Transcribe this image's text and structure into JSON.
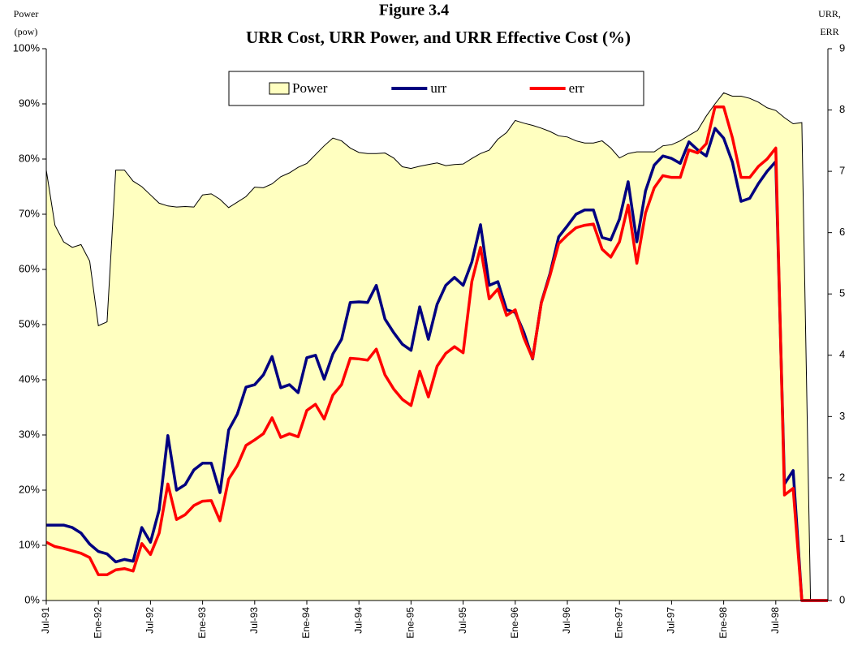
{
  "chart_data": {
    "type": "line",
    "title": "Figure 3.4",
    "subtitle": "URR Cost, URR Power, and URR Effective Cost (%)",
    "ylabel": [
      "Power",
      "(pow)"
    ],
    "y2label": [
      "URR,",
      "ERR"
    ],
    "legend": "top",
    "categories": [
      "Jul-91",
      null,
      null,
      null,
      null,
      null,
      "Ene-92",
      null,
      null,
      null,
      null,
      null,
      "Jul-92",
      null,
      null,
      null,
      null,
      null,
      "Ene-93",
      null,
      null,
      null,
      null,
      null,
      "Jul-93",
      null,
      null,
      null,
      null,
      null,
      "Ene-94",
      null,
      null,
      null,
      null,
      null,
      "Jul-94",
      null,
      null,
      null,
      null,
      null,
      "Ene-95",
      null,
      null,
      null,
      null,
      null,
      "Jul-95",
      null,
      null,
      null,
      null,
      null,
      "Ene-96",
      null,
      null,
      null,
      null,
      null,
      "Jul-96",
      null,
      null,
      null,
      null,
      null,
      "Ene-97",
      null,
      null,
      null,
      null,
      null,
      "Jul-97",
      null,
      null,
      null,
      null,
      null,
      "Ene-98",
      null,
      null,
      null,
      null,
      null,
      "Jul-98",
      null,
      null,
      null,
      null,
      null,
      null
    ],
    "series": [
      {
        "name": "Power",
        "type": "area",
        "color": "#ffffc0",
        "axis": "y",
        "values": [
          78,
          68,
          65,
          64,
          64.5,
          61.5,
          49.8,
          50.5,
          78,
          78,
          76,
          75,
          73.5,
          72,
          71.5,
          71.3,
          71.4,
          71.3,
          73.5,
          73.7,
          72.7,
          71.2,
          72.2,
          73.2,
          74.9,
          74.8,
          75.5,
          76.8,
          77.5,
          78.5,
          79.2,
          80.8,
          82.4,
          83.8,
          83.3,
          82,
          81.2,
          81,
          81,
          81.1,
          80.2,
          78.6,
          78.3,
          78.7,
          79,
          79.3,
          78.8,
          79,
          79.1,
          80.1,
          81,
          81.6,
          83.6,
          84.8,
          87,
          86.5,
          86.1,
          85.6,
          85,
          84.2,
          84,
          83.3,
          82.9,
          82.9,
          83.3,
          82,
          80.2,
          81,
          81.3,
          81.3,
          81.3,
          82.4,
          82.6,
          83.3,
          84.3,
          85.2,
          87.8,
          90,
          92,
          91.4,
          91.4,
          91,
          90.3,
          89.3,
          88.8,
          87.5,
          86.4,
          86.6,
          0,
          0,
          0
        ]
      },
      {
        "name": "urr",
        "type": "line",
        "color": "#000080",
        "axis": "y2",
        "values": [
          1.23,
          1.23,
          1.23,
          1.19,
          1.1,
          0.92,
          0.8,
          0.76,
          0.63,
          0.67,
          0.64,
          1.19,
          0.95,
          1.48,
          2.69,
          1.8,
          1.89,
          2.13,
          2.24,
          2.24,
          1.76,
          2.78,
          3.04,
          3.48,
          3.52,
          3.68,
          3.98,
          3.47,
          3.52,
          3.39,
          3.96,
          4.0,
          3.61,
          4.02,
          4.26,
          4.86,
          4.87,
          4.86,
          5.14,
          4.59,
          4.37,
          4.18,
          4.08,
          4.79,
          4.26,
          4.83,
          5.14,
          5.27,
          5.14,
          5.52,
          6.13,
          5.14,
          5.2,
          4.74,
          4.7,
          4.37,
          3.94,
          4.86,
          5.33,
          5.93,
          6.11,
          6.3,
          6.37,
          6.37,
          5.92,
          5.88,
          6.22,
          6.83,
          5.85,
          6.68,
          7.1,
          7.25,
          7.21,
          7.13,
          7.48,
          7.35,
          7.25,
          7.7,
          7.54,
          7.15,
          6.51,
          6.56,
          6.8,
          7.0,
          7.16,
          1.9,
          2.12,
          0,
          0,
          0,
          0
        ]
      },
      {
        "name": "err",
        "type": "line",
        "color": "#ff0000",
        "axis": "y2",
        "values": [
          0.95,
          0.88,
          0.85,
          0.81,
          0.77,
          0.7,
          0.42,
          0.42,
          0.5,
          0.52,
          0.48,
          0.93,
          0.75,
          1.1,
          1.9,
          1.32,
          1.4,
          1.55,
          1.62,
          1.63,
          1.3,
          1.98,
          2.2,
          2.53,
          2.62,
          2.72,
          2.98,
          2.66,
          2.72,
          2.67,
          3.1,
          3.2,
          2.96,
          3.35,
          3.52,
          3.95,
          3.94,
          3.92,
          4.1,
          3.68,
          3.45,
          3.28,
          3.18,
          3.74,
          3.32,
          3.82,
          4.03,
          4.14,
          4.04,
          5.2,
          5.76,
          4.92,
          5.08,
          4.65,
          4.74,
          4.28,
          3.95,
          4.85,
          5.3,
          5.82,
          5.96,
          6.08,
          6.12,
          6.14,
          5.73,
          5.6,
          5.85,
          6.45,
          5.5,
          6.32,
          6.73,
          6.93,
          6.9,
          6.9,
          7.35,
          7.3,
          7.45,
          8.05,
          8.05,
          7.55,
          6.9,
          6.9,
          7.08,
          7.2,
          7.38,
          1.72,
          1.83,
          0,
          0,
          0,
          0
        ]
      }
    ],
    "ylim": [
      0,
      100
    ],
    "yticks": [
      {
        "value": 0,
        "label": "0%"
      },
      {
        "value": 10,
        "label": "10%"
      },
      {
        "value": 20,
        "label": "20%"
      },
      {
        "value": 30,
        "label": "30%"
      },
      {
        "value": 40,
        "label": "40%"
      },
      {
        "value": 50,
        "label": "50%"
      },
      {
        "value": 60,
        "label": "60%"
      },
      {
        "value": 70,
        "label": "70%"
      },
      {
        "value": 80,
        "label": "80%"
      },
      {
        "value": 90,
        "label": "90%"
      },
      {
        "value": 100,
        "label": "100%"
      }
    ],
    "y2lim": [
      0,
      9
    ],
    "y2ticks": [
      0,
      1,
      2,
      3,
      4,
      5,
      6,
      7,
      8,
      9
    ]
  }
}
